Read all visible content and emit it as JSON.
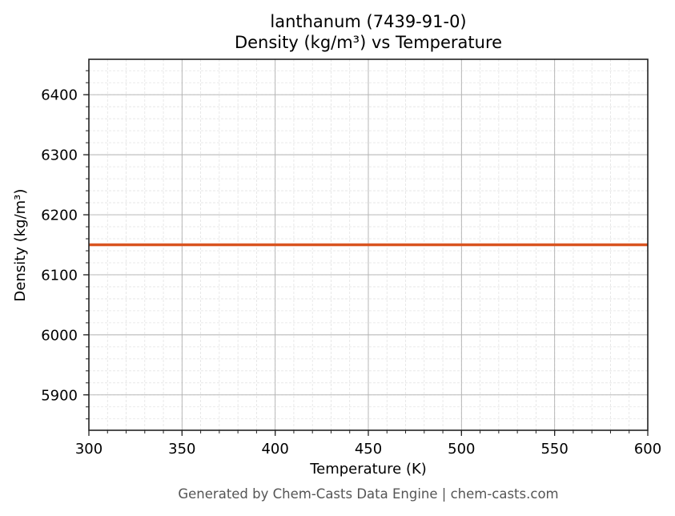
{
  "chart_data": {
    "type": "line",
    "title": "lanthanum (7439-91-0)",
    "subtitle": "Density (kg/m³) vs Temperature",
    "xlabel": "Temperature (K)",
    "ylabel": "Density (kg/m³)",
    "xlim": [
      300,
      600
    ],
    "ylim": [
      5841,
      6459
    ],
    "x_ticks": [
      300,
      350,
      400,
      450,
      500,
      550,
      600
    ],
    "y_ticks": [
      5900,
      6000,
      6100,
      6200,
      6300,
      6400
    ],
    "grid": {
      "major": true,
      "minor": true
    },
    "legend": null,
    "series": [
      {
        "name": "Density",
        "color": "#d95420",
        "x": [
          300,
          350,
          400,
          450,
          500,
          550,
          600
        ],
        "y": [
          6150,
          6150,
          6150,
          6150,
          6150,
          6150,
          6150
        ]
      }
    ]
  },
  "footer": "Generated by Chem-Casts Data Engine | chem-casts.com"
}
